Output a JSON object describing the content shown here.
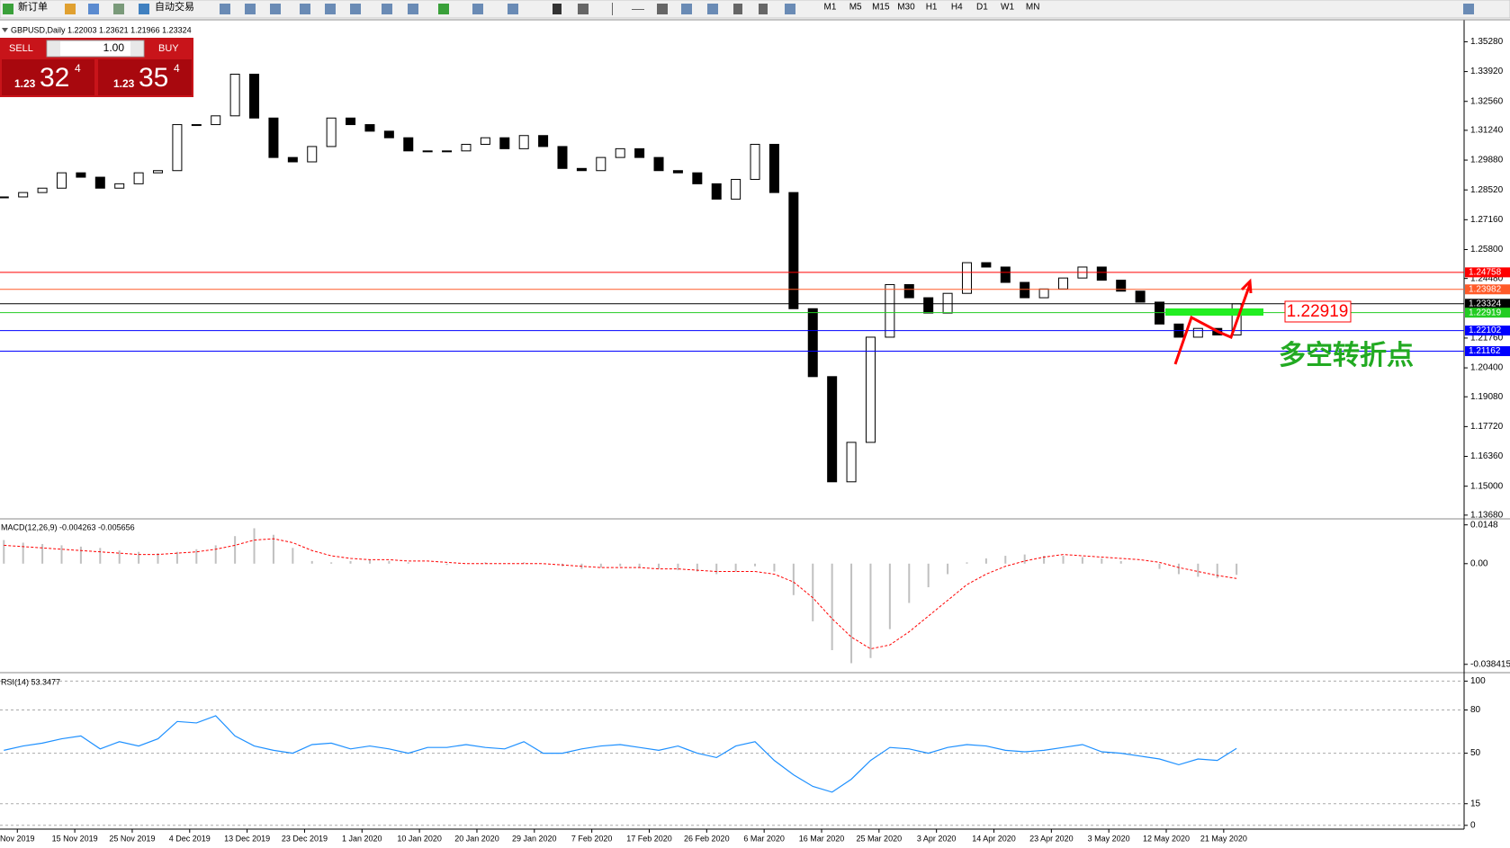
{
  "toolbar": {
    "buttons": [
      "新订单",
      "自动交易"
    ],
    "timeframes": [
      "M1",
      "M5",
      "M15",
      "M30",
      "H1",
      "H4",
      "D1",
      "W1",
      "MN"
    ]
  },
  "trade_panel": {
    "sell": "SELL",
    "lot": "1.00",
    "buy": "BUY",
    "bid": {
      "big": "1.23",
      "pips": "32",
      "frac": "4"
    },
    "ask": {
      "big": "1.23",
      "pips": "35",
      "frac": "4"
    }
  },
  "chart_data": [
    {
      "type": "candlestick",
      "title": "GBPUSD,Daily 1.22003 1.23621 1.21966 1.23324",
      "values": [
        1.282,
        1.284,
        1.286,
        1.293,
        1.291,
        1.286,
        1.288,
        1.293,
        1.294,
        1.315,
        1.315,
        1.319,
        1.338,
        1.318,
        1.3,
        1.298,
        1.305,
        1.318,
        1.315,
        1.312,
        1.309,
        1.303,
        1.303,
        1.303,
        1.306,
        1.309,
        1.304,
        1.31,
        1.305,
        1.295,
        1.294,
        1.3,
        1.304,
        1.3,
        1.294,
        1.293,
        1.288,
        1.281,
        1.29,
        1.306,
        1.284,
        1.231,
        1.2,
        1.152,
        1.17,
        1.218,
        1.242,
        1.236,
        1.229,
        1.238,
        1.252,
        1.25,
        1.243,
        1.236,
        1.24,
        1.245,
        1.25,
        1.244,
        1.239,
        1.234,
        1.224,
        1.218,
        1.222,
        1.219,
        1.23324
      ],
      "ylim": [
        1.1355,
        1.3616
      ],
      "yticks": [
        {
          "value": 1.3528,
          "label": "1.35280"
        },
        {
          "value": 1.3392,
          "label": "1.33920"
        },
        {
          "value": 1.3256,
          "label": "1.32560"
        },
        {
          "value": 1.3124,
          "label": "1.31240"
        },
        {
          "value": 1.2988,
          "label": "1.29880"
        },
        {
          "value": 1.2852,
          "label": "1.28520"
        },
        {
          "value": 1.2716,
          "label": "1.27160"
        },
        {
          "value": 1.258,
          "label": "1.25800"
        },
        {
          "value": 1.2448,
          "label": "1.24480"
        },
        {
          "value": 1.2176,
          "label": "1.21760"
        },
        {
          "value": 1.204,
          "label": "1.20400"
        },
        {
          "value": 1.1908,
          "label": "1.19080"
        },
        {
          "value": 1.1772,
          "label": "1.17720"
        },
        {
          "value": 1.1636,
          "label": "1.16360"
        },
        {
          "value": 1.15,
          "label": "1.15000"
        },
        {
          "value": 1.1368,
          "label": "1.13680"
        }
      ],
      "levels": [
        {
          "value": 1.24758,
          "color": "#ff0000"
        },
        {
          "value": 1.23982,
          "color": "#ff5a28"
        },
        {
          "value": 1.23324,
          "color": "#000000"
        },
        {
          "value": 1.22919,
          "color": "#22cc22"
        },
        {
          "value": 1.22102,
          "color": "#0000ff"
        },
        {
          "value": 1.21162,
          "color": "#0000ff"
        }
      ],
      "x_labels": [
        "Nov 2019",
        "15 Nov 2019",
        "25 Nov 2019",
        "4 Dec 2019",
        "13 Dec 2019",
        "23 Dec 2019",
        "1 Jan 2020",
        "10 Jan 2020",
        "20 Jan 2020",
        "29 Jan 2020",
        "7 Feb 2020",
        "17 Feb 2020",
        "26 Feb 2020",
        "6 Mar 2020",
        "16 Mar 2020",
        "25 Mar 2020",
        "3 Apr 2020",
        "14 Apr 2020",
        "23 Apr 2020",
        "3 May 2020",
        "12 May 2020",
        "21 May 2020"
      ]
    },
    {
      "type": "macd",
      "title": "MACD(12,26,9) -0.004263 -0.005656",
      "series": [
        {
          "color": "#c0c0c0",
          "values": [
            0.009,
            0.008,
            0.0075,
            0.007,
            0.0065,
            0.006,
            0.005,
            0.0045,
            0.004,
            0.0045,
            0.0055,
            0.007,
            0.0105,
            0.0135,
            0.011,
            0.006,
            0.001,
            0.0005,
            0.001,
            0.0015,
            0.001,
            0.0005,
            0.0,
            -0.0005,
            0.0,
            0.0005,
            0.0,
            0.0005,
            0.0,
            -0.001,
            -0.002,
            -0.0015,
            -0.001,
            -0.0015,
            -0.002,
            -0.0025,
            -0.003,
            -0.004,
            -0.003,
            -0.001,
            -0.003,
            -0.012,
            -0.022,
            -0.033,
            -0.038,
            -0.036,
            -0.025,
            -0.015,
            -0.009,
            -0.004,
            0.0005,
            0.002,
            0.003,
            0.0035,
            0.003,
            0.003,
            0.0025,
            0.002,
            0.001,
            0.0,
            -0.002,
            -0.004,
            -0.005,
            -0.0055,
            -0.004263
          ]
        },
        {
          "color": "#ff0000",
          "values": [
            0.007,
            0.0065,
            0.006,
            0.0055,
            0.005,
            0.0045,
            0.004,
            0.0035,
            0.0035,
            0.004,
            0.0045,
            0.0055,
            0.007,
            0.009,
            0.0095,
            0.008,
            0.005,
            0.003,
            0.002,
            0.0015,
            0.0015,
            0.001,
            0.001,
            0.0005,
            0.0,
            0.0,
            0.0,
            0.0,
            0.0,
            -0.0005,
            -0.001,
            -0.0015,
            -0.0015,
            -0.0015,
            -0.002,
            -0.002,
            -0.0025,
            -0.003,
            -0.003,
            -0.003,
            -0.004,
            -0.007,
            -0.013,
            -0.021,
            -0.028,
            -0.0325,
            -0.031,
            -0.026,
            -0.02,
            -0.014,
            -0.008,
            -0.004,
            -0.001,
            0.001,
            0.0025,
            0.0035,
            0.003,
            0.0025,
            0.002,
            0.0015,
            0.0005,
            -0.0015,
            -0.003,
            -0.0045,
            -0.005656
          ]
        }
      ],
      "ylim": [
        -0.0409,
        0.0164
      ],
      "yticks": [
        0.0148,
        {
          "value": 0,
          "label": "0.00"
        },
        -0.038415
      ]
    },
    {
      "type": "line",
      "title": "RSI(14) 53.3477",
      "color": "#1e90ff",
      "values": [
        52,
        55,
        57,
        60,
        62,
        53,
        58,
        55,
        60,
        72,
        71,
        76,
        62,
        55,
        52,
        50,
        56,
        57,
        53,
        55,
        53,
        50,
        54,
        54,
        56,
        54,
        53,
        58,
        50,
        50,
        53,
        55,
        56,
        54,
        52,
        55,
        50,
        47,
        55,
        58,
        45,
        35,
        27,
        23,
        32,
        45,
        54,
        53,
        50,
        54,
        56,
        55,
        52,
        51,
        52,
        54,
        56,
        51,
        50,
        48,
        46,
        42,
        46,
        45,
        53.3477
      ],
      "ylim": [
        -2,
        104
      ],
      "yticks": [
        100,
        80,
        50,
        15,
        0
      ],
      "grid": true
    }
  ],
  "annotations": {
    "price_box": "1.22919",
    "note": "多空转折点"
  }
}
